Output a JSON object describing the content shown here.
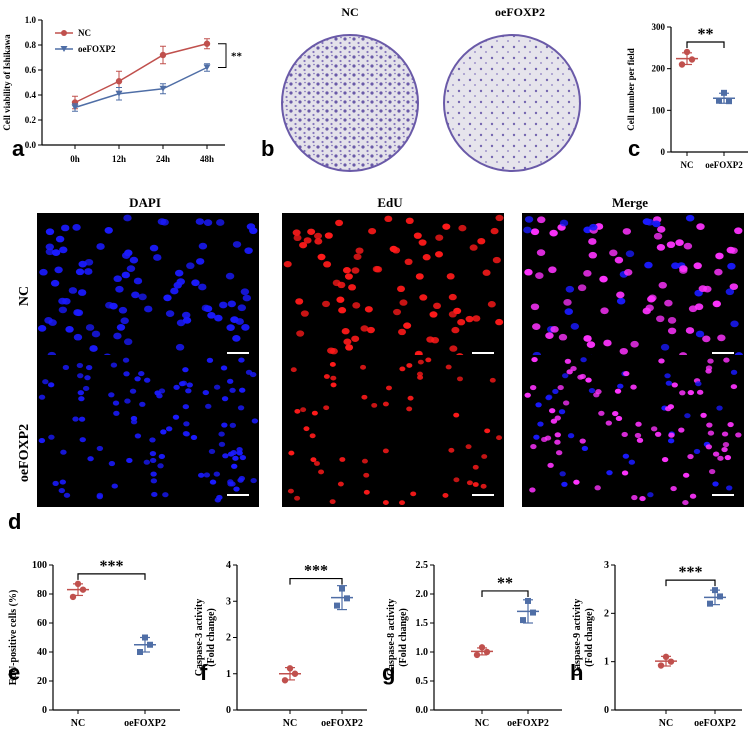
{
  "colors": {
    "nc": "#c0504d",
    "oe": "#4f6ea6",
    "dapi": "#1a1aff",
    "edu": "#ff1a1a",
    "merge": "#ff33ff",
    "violet": "#6a5aa8",
    "plate": "#d9d6e2"
  },
  "panels": {
    "a": "a",
    "b": "b",
    "c": "c",
    "d": "d",
    "e": "e",
    "f": "f",
    "g": "g",
    "h": "h"
  },
  "plates": {
    "nc_title": "NC",
    "oe_title": "oeFOXP2"
  },
  "micro": {
    "col_titles": [
      "DAPI",
      "EdU",
      "Merge"
    ],
    "row_titles": [
      "NC",
      "oeFOXP2"
    ]
  },
  "chart_data": [
    {
      "type": "line",
      "id": "a",
      "x": [
        "0h",
        "12h",
        "24h",
        "48h"
      ],
      "series": [
        {
          "name": "NC",
          "values": [
            0.34,
            0.51,
            0.72,
            0.81
          ],
          "errors": [
            0.05,
            0.08,
            0.07,
            0.04
          ]
        },
        {
          "name": "oeFOXP2",
          "values": [
            0.3,
            0.41,
            0.45,
            0.62
          ],
          "errors": [
            0.03,
            0.05,
            0.04,
            0.03
          ]
        }
      ],
      "ylabel": "Cell viability of Ishikawa",
      "ylim": [
        0,
        1.0
      ],
      "yticks": [
        "0.0",
        "0.2",
        "0.4",
        "0.6",
        "0.8",
        "1.0"
      ],
      "significance": "**"
    },
    {
      "type": "scatter",
      "id": "c",
      "categories": [
        "NC",
        "oeFOXP2"
      ],
      "series": [
        {
          "name": "NC",
          "points": [
            240,
            210,
            222
          ],
          "mean": 224,
          "err": 14
        },
        {
          "name": "oeFOXP2",
          "points": [
            142,
            123,
            122
          ],
          "mean": 129,
          "err": 12
        }
      ],
      "ylabel": "Cell number per field",
      "ylim": [
        0,
        300
      ],
      "yticks": [
        "0",
        "100",
        "200",
        "300"
      ],
      "significance": "**"
    },
    {
      "type": "scatter",
      "id": "e",
      "categories": [
        "NC",
        "oeFOXP2"
      ],
      "series": [
        {
          "name": "NC",
          "points": [
            87,
            78,
            83
          ],
          "mean": 83,
          "err": 4
        },
        {
          "name": "oeFOXP2",
          "points": [
            50,
            40,
            45
          ],
          "mean": 45,
          "err": 5
        }
      ],
      "ylabel": "EdU-positive cells (%)",
      "ylim": [
        0,
        100
      ],
      "yticks": [
        "0",
        "20",
        "40",
        "60",
        "80",
        "100"
      ],
      "significance": "***"
    },
    {
      "type": "scatter",
      "id": "f",
      "categories": [
        "NC",
        "oeFOXP2"
      ],
      "series": [
        {
          "name": "NC",
          "points": [
            1.15,
            0.82,
            1.0
          ],
          "mean": 1.0,
          "err": 0.17
        },
        {
          "name": "oeFOXP2",
          "points": [
            3.35,
            2.88,
            3.08
          ],
          "mean": 3.1,
          "err": 0.33
        }
      ],
      "ylabel": "Caspase-3 activity",
      "ylabel2": "(Fold change)",
      "ylim": [
        0,
        4
      ],
      "yticks": [
        "0",
        "1",
        "2",
        "3",
        "4"
      ],
      "significance": "***"
    },
    {
      "type": "scatter",
      "id": "g",
      "categories": [
        "NC",
        "oeFOXP2"
      ],
      "series": [
        {
          "name": "NC",
          "points": [
            1.08,
            0.95,
            1.0
          ],
          "mean": 1.01,
          "err": 0.06
        },
        {
          "name": "oeFOXP2",
          "points": [
            1.88,
            1.55,
            1.68
          ],
          "mean": 1.7,
          "err": 0.2
        }
      ],
      "ylabel": "Caspase-8 activity",
      "ylabel2": "(Fold change)",
      "ylim": [
        0,
        2.5
      ],
      "yticks": [
        "0.0",
        "0.5",
        "1.0",
        "1.5",
        "2.0",
        "2.5"
      ],
      "significance": "**"
    },
    {
      "type": "scatter",
      "id": "h",
      "categories": [
        "NC",
        "oeFOXP2"
      ],
      "series": [
        {
          "name": "NC",
          "points": [
            1.1,
            0.92,
            1.0
          ],
          "mean": 1.01,
          "err": 0.1
        },
        {
          "name": "oeFOXP2",
          "points": [
            2.48,
            2.2,
            2.35
          ],
          "mean": 2.33,
          "err": 0.15
        }
      ],
      "ylabel": "Caspase-9 activity",
      "ylabel2": "(Fold change)",
      "ylim": [
        0,
        3
      ],
      "yticks": [
        "0",
        "1",
        "2",
        "3"
      ],
      "significance": "***"
    }
  ]
}
